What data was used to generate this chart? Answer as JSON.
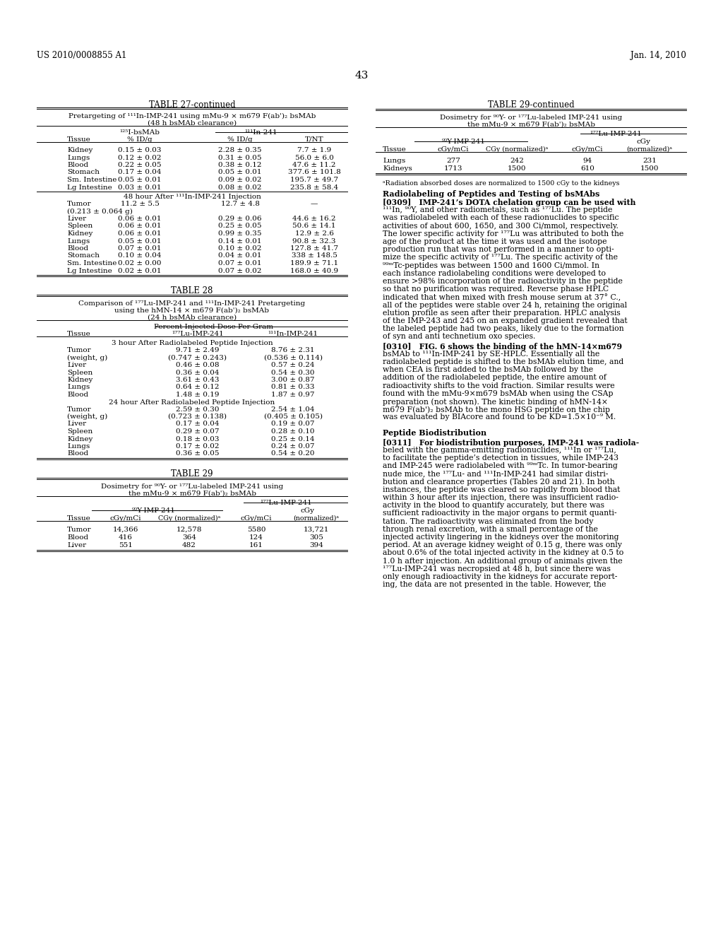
{
  "page_number": "43",
  "patent_left": "US 2010/0008855 A1",
  "patent_right": "Jan. 14, 2010",
  "background_color": "#ffffff"
}
